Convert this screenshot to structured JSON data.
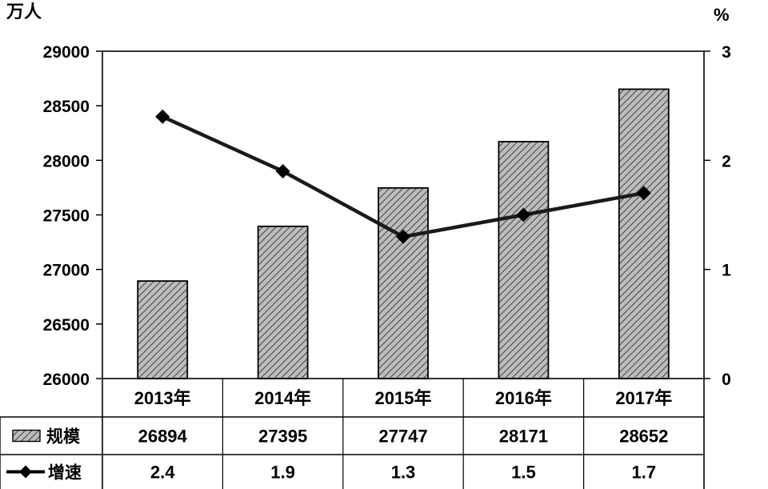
{
  "chart_data": {
    "type": "bar",
    "categories": [
      "2013年",
      "2014年",
      "2015年",
      "2016年",
      "2017年"
    ],
    "left_axis": {
      "unit": "万人",
      "ylim": [
        26000,
        29000
      ],
      "ticks": [
        26000,
        26500,
        27000,
        27500,
        28000,
        28500,
        29000
      ]
    },
    "right_axis": {
      "unit": "%",
      "ylim": [
        0,
        3
      ],
      "ticks": [
        0,
        1,
        2,
        3
      ]
    },
    "series": [
      {
        "name": "规模",
        "type": "bar",
        "axis": "left",
        "values": [
          26894,
          27395,
          27747,
          28171,
          28652
        ]
      },
      {
        "name": "增速",
        "type": "line",
        "axis": "right",
        "values": [
          2.4,
          1.9,
          1.3,
          1.5,
          1.7
        ]
      }
    ],
    "table": {
      "rows": [
        {
          "label": "规模",
          "values": [
            "26894",
            "27395",
            "27747",
            "28171",
            "28652"
          ]
        },
        {
          "label": "增速",
          "values": [
            "2.4",
            "1.9",
            "1.3",
            "1.5",
            "1.7"
          ]
        }
      ]
    },
    "grid": false,
    "legend": "data-table"
  }
}
